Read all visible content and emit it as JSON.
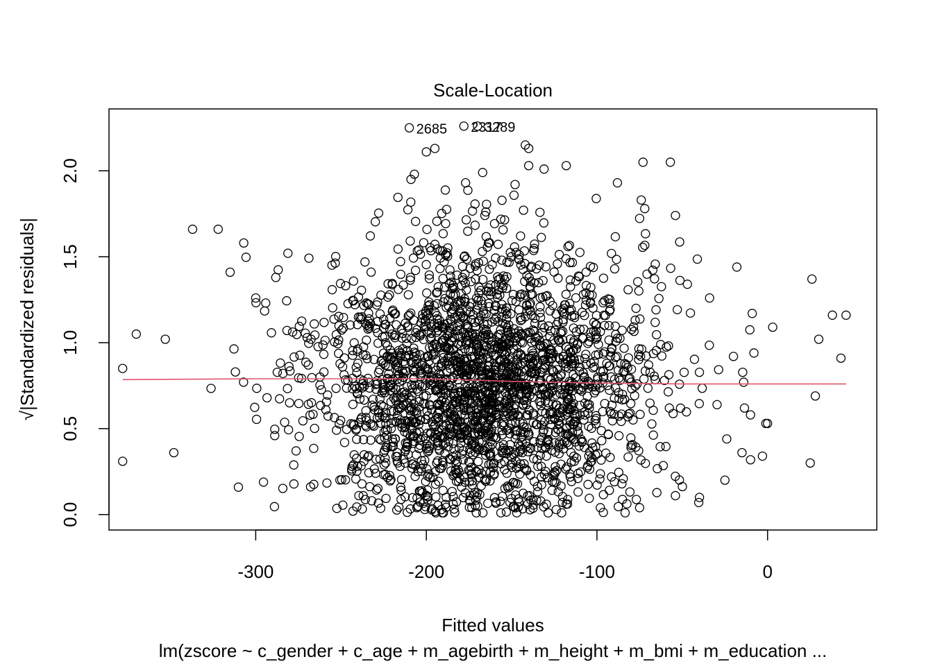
{
  "chart_data": {
    "type": "scatter",
    "title": "Scale-Location",
    "xlabel": "Fitted values",
    "ylabel": "√|Standardized residuals|",
    "subtitle": "lm(zscore ~ c_gender + c_age + m_agebirth + m_height + m_bmi + m_education  ...",
    "xlim": [
      -386,
      64
    ],
    "ylim": [
      -0.09,
      2.36
    ],
    "x_ticks": [
      -300,
      -200,
      -100,
      0
    ],
    "x_tick_labels": [
      "-300",
      "-200",
      "-100",
      "0"
    ],
    "y_ticks": [
      0.0,
      0.5,
      1.0,
      1.5,
      2.0
    ],
    "y_tick_labels": [
      "0.0",
      "0.5",
      "1.0",
      "1.5",
      "2.0"
    ],
    "grid": false,
    "point_style": "open circle",
    "n_points_approx": 2500,
    "point_distribution": {
      "x_center": -165,
      "x_sd": 48,
      "y_center": 0.78,
      "y_sd": 0.38
    },
    "labeled_points": [
      {
        "label": "2685",
        "x": -210,
        "y": 2.25
      },
      {
        "label": "2317",
        "x": -178,
        "y": 2.26
      },
      {
        "label": "3289",
        "x": -170,
        "y": 2.26
      }
    ],
    "smoother": {
      "name": "",
      "color": "#DF536B",
      "x": [
        -378,
        -300,
        -200,
        -150,
        -100,
        -50,
        0,
        46
      ],
      "y": [
        0.785,
        0.79,
        0.79,
        0.775,
        0.765,
        0.76,
        0.76,
        0.76
      ]
    },
    "outlier_points": [
      {
        "x": -378,
        "y": 0.85
      },
      {
        "x": -378,
        "y": 0.31
      },
      {
        "x": -370,
        "y": 1.05
      },
      {
        "x": -353,
        "y": 1.02
      },
      {
        "x": -348,
        "y": 0.36
      },
      {
        "x": -337,
        "y": 1.66
      },
      {
        "x": -322,
        "y": 1.66
      },
      {
        "x": -315,
        "y": 1.41
      },
      {
        "x": -307,
        "y": 1.58
      },
      {
        "x": -300,
        "y": 1.26
      },
      {
        "x": -209,
        "y": 1.95
      },
      {
        "x": -207,
        "y": 1.98
      },
      {
        "x": -200,
        "y": 2.11
      },
      {
        "x": -195,
        "y": 2.13
      },
      {
        "x": -177,
        "y": 1.93
      },
      {
        "x": -167,
        "y": 1.99
      },
      {
        "x": -148,
        "y": 1.92
      },
      {
        "x": -142,
        "y": 2.15
      },
      {
        "x": -140,
        "y": 2.13
      },
      {
        "x": -140,
        "y": 2.03
      },
      {
        "x": -131,
        "y": 2.01
      },
      {
        "x": -118,
        "y": 2.03
      },
      {
        "x": -88,
        "y": 1.93
      },
      {
        "x": -73,
        "y": 2.05
      },
      {
        "x": -57,
        "y": 2.05
      },
      {
        "x": -72,
        "y": 1.78
      },
      {
        "x": -54,
        "y": 1.74
      },
      {
        "x": -18,
        "y": 1.44
      },
      {
        "x": -47,
        "y": 1.34
      },
      {
        "x": -34,
        "y": 1.26
      },
      {
        "x": -9,
        "y": 1.17
      },
      {
        "x": 3,
        "y": 1.09
      },
      {
        "x": 26,
        "y": 1.37
      },
      {
        "x": 38,
        "y": 1.16
      },
      {
        "x": 46,
        "y": 1.16
      },
      {
        "x": 30,
        "y": 1.02
      },
      {
        "x": 43,
        "y": 0.91
      },
      {
        "x": -1,
        "y": 0.53
      },
      {
        "x": 0,
        "y": 0.53
      },
      {
        "x": -10,
        "y": 0.58
      },
      {
        "x": -15,
        "y": 0.36
      },
      {
        "x": -25,
        "y": 0.2
      },
      {
        "x": -3,
        "y": 0.34
      },
      {
        "x": 25,
        "y": 0.3
      },
      {
        "x": 28,
        "y": 0.69
      },
      {
        "x": -14,
        "y": 0.77
      },
      {
        "x": -20,
        "y": 0.92
      },
      {
        "x": -8,
        "y": 0.94
      },
      {
        "x": -190,
        "y": 0.01
      },
      {
        "x": -147,
        "y": 0.01
      },
      {
        "x": -75,
        "y": 0.04
      },
      {
        "x": -243,
        "y": 0.02
      },
      {
        "x": -98,
        "y": 0.04
      },
      {
        "x": -118,
        "y": 0.06
      },
      {
        "x": -54,
        "y": 0.11
      },
      {
        "x": -232,
        "y": 0.08
      }
    ]
  }
}
